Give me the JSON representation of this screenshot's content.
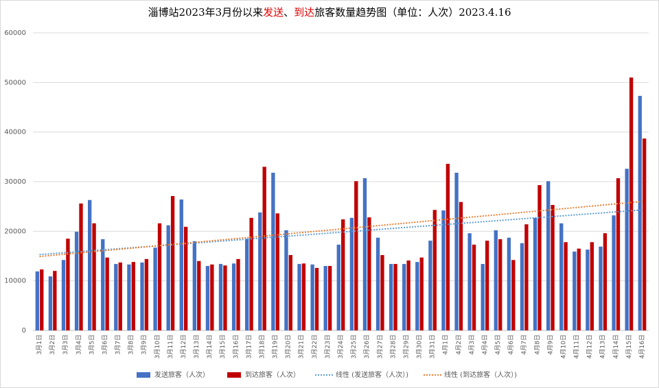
{
  "chart_data": {
    "type": "bar",
    "title": [
      "淄博站2023年3月份以来",
      "发送",
      "、",
      "到达",
      "旅客数量趋势图（单位：人次）2023.4.16"
    ],
    "categories": [
      "3月1日",
      "3月2日",
      "3月3日",
      "3月4日",
      "3月5日",
      "3月6日",
      "3月7日",
      "3月8日",
      "3月9日",
      "3月10日",
      "3月11日",
      "3月12日",
      "3月13日",
      "3月14日",
      "3月15日",
      "3月16日",
      "3月17日",
      "3月18日",
      "3月19日",
      "3月20日",
      "3月21日",
      "3月22日",
      "3月23日",
      "3月24日",
      "3月25日",
      "3月26日",
      "3月27日",
      "3月28日",
      "3月29日",
      "3月30日",
      "3月31日",
      "4月1日",
      "4月2日",
      "4月3日",
      "4月4日",
      "4月5日",
      "4月6日",
      "4月7日",
      "4月8日",
      "4月9日",
      "4月10日",
      "4月11日",
      "4月12日",
      "4月13日",
      "4月14日",
      "4月15日",
      "4月16日"
    ],
    "series": [
      {
        "name": "发送旅客（人次）",
        "color": "#4472c4",
        "values": [
          11900,
          10900,
          14200,
          19900,
          26300,
          18400,
          13400,
          13300,
          13700,
          16700,
          21200,
          26400,
          18000,
          13000,
          13400,
          13500,
          18500,
          23800,
          31800,
          20200,
          13400,
          13300,
          13000,
          17300,
          22700,
          30700,
          18700,
          13400,
          13400,
          13800,
          18100,
          24200,
          31800,
          19600,
          13400,
          20200,
          18700,
          17600,
          22700,
          30100,
          21600,
          15900,
          16300,
          16900,
          23200,
          32600,
          47300
        ]
      },
      {
        "name": "到达旅客（人次）",
        "color": "#c00000",
        "values": [
          12300,
          12000,
          18500,
          25600,
          21600,
          14700,
          13700,
          13800,
          14400,
          21600,
          27100,
          20900,
          14000,
          13300,
          13100,
          14400,
          22700,
          33000,
          23600,
          15200,
          13500,
          12600,
          13000,
          22400,
          30100,
          22800,
          15200,
          13400,
          14100,
          14700,
          24300,
          33600,
          25900,
          17300,
          18100,
          18400,
          14200,
          21400,
          29300,
          25300,
          17800,
          16500,
          17800,
          19600,
          30700,
          51000,
          38700
        ]
      }
    ],
    "trendlines": [
      {
        "name": "线性 (发送旅客（人次）)",
        "color": "#5b9bd5",
        "values": [
          15300,
          24300
        ]
      },
      {
        "name": "线性 (到达旅客（人次）)",
        "color": "#ed7d31",
        "values": [
          14900,
          26000
        ]
      }
    ],
    "ylim": [
      0,
      60000
    ],
    "yticks": [
      0,
      10000,
      20000,
      30000,
      40000,
      50000,
      60000
    ],
    "grid": true
  }
}
